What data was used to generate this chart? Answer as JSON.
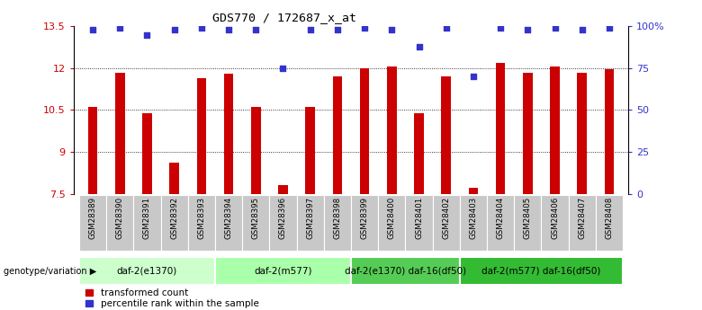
{
  "title": "GDS770 / 172687_x_at",
  "samples": [
    "GSM28389",
    "GSM28390",
    "GSM28391",
    "GSM28392",
    "GSM28393",
    "GSM28394",
    "GSM28395",
    "GSM28396",
    "GSM28397",
    "GSM28398",
    "GSM28399",
    "GSM28400",
    "GSM28401",
    "GSM28402",
    "GSM28403",
    "GSM28404",
    "GSM28405",
    "GSM28406",
    "GSM28407",
    "GSM28408"
  ],
  "bar_values": [
    10.6,
    11.85,
    10.4,
    8.6,
    11.65,
    11.8,
    10.6,
    7.8,
    10.6,
    11.7,
    12.0,
    12.05,
    10.4,
    11.7,
    7.7,
    12.2,
    11.85,
    12.05,
    11.85,
    11.95
  ],
  "pct_values": [
    98,
    99,
    95,
    98,
    99,
    98,
    98,
    75,
    98,
    98,
    99,
    98,
    88,
    99,
    70,
    99,
    98,
    99,
    98,
    99
  ],
  "ymin": 7.5,
  "ymax": 13.5,
  "yticks": [
    7.5,
    9.0,
    10.5,
    12.0,
    13.5
  ],
  "ytick_labels": [
    "7.5",
    "9",
    "10.5",
    "12",
    "13.5"
  ],
  "gridlines": [
    9.0,
    10.5,
    12.0
  ],
  "bar_color": "#CC0000",
  "dot_color": "#3333CC",
  "groups": [
    {
      "label": "daf-2(e1370)",
      "start": 0,
      "end": 5,
      "color": "#ccffcc"
    },
    {
      "label": "daf-2(m577)",
      "start": 5,
      "end": 10,
      "color": "#aaffaa"
    },
    {
      "label": "daf-2(e1370) daf-16(df50)",
      "start": 10,
      "end": 14,
      "color": "#55cc55"
    },
    {
      "label": "daf-2(m577) daf-16(df50)",
      "start": 14,
      "end": 20,
      "color": "#33bb33"
    }
  ],
  "legend_label_bar": "transformed count",
  "legend_label_dot": "percentile rank within the sample",
  "right_yticks": [
    0,
    25,
    50,
    75,
    100
  ],
  "right_ytick_labels": [
    "0",
    "25",
    "50",
    "75",
    "100%"
  ]
}
